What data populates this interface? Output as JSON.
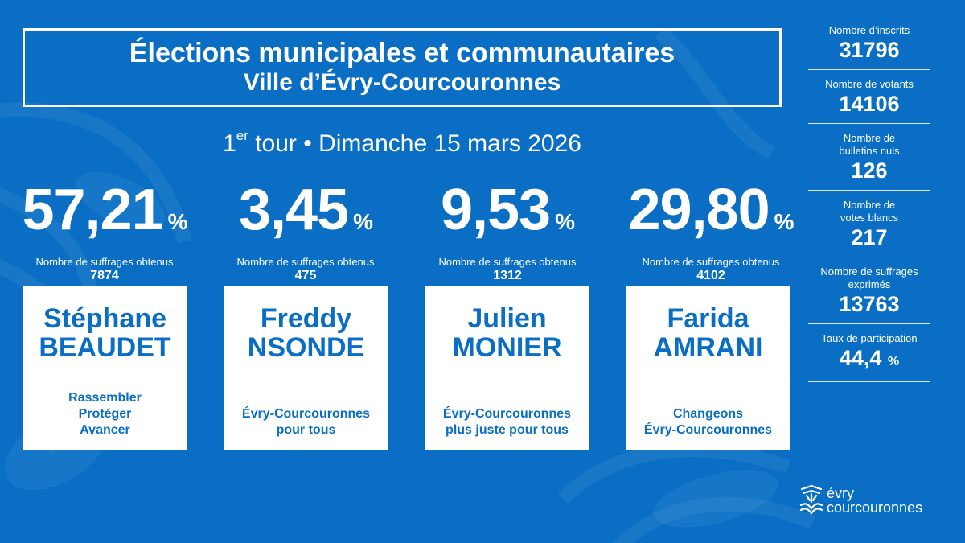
{
  "title": {
    "line1": "Élections municipales et communautaires",
    "line2": "Ville d’Évry-Courcouronnes"
  },
  "subtitle": {
    "round_num": "1",
    "round_sup": "er",
    "rest": " tour • Dimanche 15 mars 2026"
  },
  "candidates": [
    {
      "percent": "57,21",
      "pct_sign": "%",
      "votes_label": "Nombre de suffrages obtenus",
      "votes": "7874",
      "first": "Stéphane",
      "last": "BEAUDET",
      "slogan": [
        "Rassembler",
        "Protéger",
        "Avancer"
      ]
    },
    {
      "percent": "3,45",
      "pct_sign": "%",
      "votes_label": "Nombre de suffrages obtenus",
      "votes": "475",
      "first": "Freddy",
      "last": "NSONDE",
      "slogan": [
        "Évry-Courcouronnes",
        "pour tous"
      ]
    },
    {
      "percent": "9,53",
      "pct_sign": "%",
      "votes_label": "Nombre de suffrages obtenus",
      "votes": "1312",
      "first": "Julien",
      "last": "MONIER",
      "slogan": [
        "Évry-Courcouronnes",
        "plus juste pour tous"
      ]
    },
    {
      "percent": "29,80",
      "pct_sign": "%",
      "votes_label": "Nombre de suffrages obtenus",
      "votes": "4102",
      "first": "Farida",
      "last": "AMRANI",
      "slogan": [
        "Changeons",
        "Évry-Courcouronnes"
      ]
    }
  ],
  "stats": [
    {
      "label": [
        "Nombre d’inscrits"
      ],
      "value": "31796",
      "unit": ""
    },
    {
      "label": [
        "Nombre de votants"
      ],
      "value": "14106",
      "unit": ""
    },
    {
      "label": [
        "Nombre de",
        "bulletins nuls"
      ],
      "value": "126",
      "unit": ""
    },
    {
      "label": [
        "Nombre de",
        "votes blancs"
      ],
      "value": "217",
      "unit": ""
    },
    {
      "label": [
        "Nombre de suffrages",
        "exprimés"
      ],
      "value": "13763",
      "unit": ""
    },
    {
      "label": [
        "Taux de participation"
      ],
      "value": "44,4",
      "unit": "%"
    }
  ],
  "logo": {
    "line1": "évry",
    "line2": "courcouronnes",
    "icon": "evry-tree-logo-icon"
  },
  "colors": {
    "background": "#0a6fc4",
    "card": "#ffffff",
    "accent_text": "#0a6fc4"
  }
}
